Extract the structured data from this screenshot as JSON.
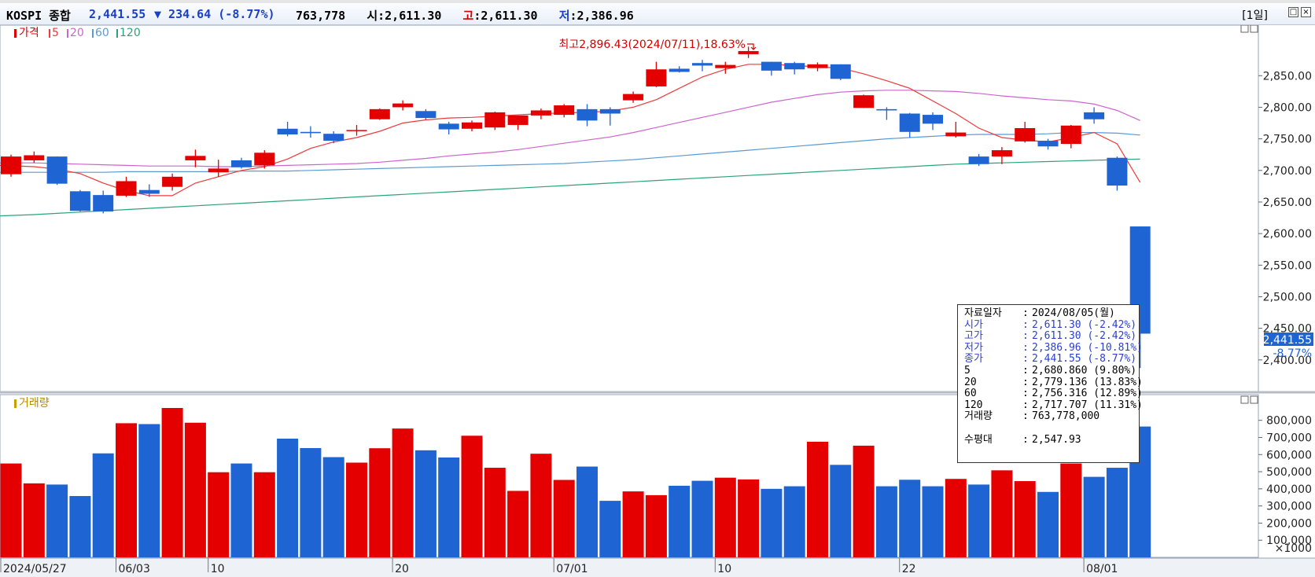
{
  "header": {
    "name": "KOSPI 종합",
    "price": "2,441.55",
    "change": "▼ 234.64 (-8.77%)",
    "volume": "763,778",
    "open_label": "시",
    "open_value": ":2,611.30",
    "high_label": "고",
    "high_value": ":2,611.30",
    "low_label": "저",
    "low_value": ":2,386.96",
    "period": "[1일]"
  },
  "colors": {
    "up": "#e40000",
    "down": "#1e64d2",
    "ma5": "#ee3a3a",
    "ma20": "#cc66cc",
    "ma60": "#5a9bd4",
    "ma120": "#2aa37a"
  },
  "price_legend": {
    "price": "가격",
    "ma5": "5",
    "ma20": "20",
    "ma60": "60",
    "ma120": "120"
  },
  "volume_legend": "거래량",
  "annotation": "최고2,896.43(2024/07/11),18.63%",
  "last_price_tag": {
    "price": "2,441.55",
    "pct": "-8.77%"
  },
  "chart_data": {
    "type": "candlestick",
    "price_axis": {
      "range": [
        2350,
        2930
      ],
      "ticks": [
        2400,
        2450,
        2500,
        2550,
        2600,
        2650,
        2700,
        2750,
        2800,
        2850
      ],
      "tick_labels": [
        "2,400.00",
        "2,450.00",
        "2,500.00",
        "2,550.00",
        "2,600.00",
        "2,650.00",
        "2,700.00",
        "2,750.00",
        "2,800.00",
        "2,850.00"
      ]
    },
    "volume_axis": {
      "range": [
        0,
        950
      ],
      "ticks": [
        100,
        200,
        300,
        400,
        500,
        600,
        700,
        800
      ],
      "tick_labels": [
        "100,000",
        "200,000",
        "300,000",
        "400,000",
        "500,000",
        "600,000",
        "700,000",
        "800,000"
      ],
      "unit_label": "×1000"
    },
    "x_labels": [
      {
        "index": 0,
        "label": "2024/05/27"
      },
      {
        "index": 5,
        "label": "06/03"
      },
      {
        "index": 9,
        "label": "10"
      },
      {
        "index": 17,
        "label": "20"
      },
      {
        "index": 24,
        "label": "07/01"
      },
      {
        "index": 31,
        "label": "10"
      },
      {
        "index": 39,
        "label": "22"
      },
      {
        "index": 47,
        "label": "08/01"
      }
    ],
    "candles": [
      {
        "o": 2694,
        "h": 2725,
        "l": 2690,
        "c": 2722,
        "v": 548
      },
      {
        "o": 2716,
        "h": 2730,
        "l": 2712,
        "c": 2724,
        "v": 432
      },
      {
        "o": 2722,
        "h": 2722,
        "l": 2677,
        "c": 2679,
        "v": 425
      },
      {
        "o": 2667,
        "h": 2669,
        "l": 2635,
        "c": 2636,
        "v": 358
      },
      {
        "o": 2661,
        "h": 2668,
        "l": 2632,
        "c": 2635,
        "v": 607
      },
      {
        "o": 2660,
        "h": 2690,
        "l": 2658,
        "c": 2683,
        "v": 783
      },
      {
        "o": 2669,
        "h": 2678,
        "l": 2658,
        "c": 2663,
        "v": 778
      },
      {
        "o": 2674,
        "h": 2695,
        "l": 2668,
        "c": 2690,
        "v": 872
      },
      {
        "o": 2716,
        "h": 2733,
        "l": 2705,
        "c": 2723,
        "v": 786
      },
      {
        "o": 2697,
        "h": 2717,
        "l": 2690,
        "c": 2703,
        "v": 497
      },
      {
        "o": 2716,
        "h": 2720,
        "l": 2703,
        "c": 2705,
        "v": 548
      },
      {
        "o": 2708,
        "h": 2732,
        "l": 2703,
        "c": 2728,
        "v": 497
      },
      {
        "o": 2766,
        "h": 2777,
        "l": 2754,
        "c": 2757,
        "v": 693
      },
      {
        "o": 2761,
        "h": 2770,
        "l": 2752,
        "c": 2759,
        "v": 638
      },
      {
        "o": 2758,
        "h": 2762,
        "l": 2743,
        "c": 2747,
        "v": 585
      },
      {
        "o": 2763,
        "h": 2772,
        "l": 2755,
        "c": 2764,
        "v": 553
      },
      {
        "o": 2781,
        "h": 2798,
        "l": 2780,
        "c": 2797,
        "v": 637
      },
      {
        "o": 2800,
        "h": 2811,
        "l": 2795,
        "c": 2806,
        "v": 752
      },
      {
        "o": 2794,
        "h": 2797,
        "l": 2780,
        "c": 2783,
        "v": 625
      },
      {
        "o": 2774,
        "h": 2777,
        "l": 2757,
        "c": 2765,
        "v": 583
      },
      {
        "o": 2766,
        "h": 2779,
        "l": 2762,
        "c": 2776,
        "v": 710
      },
      {
        "o": 2768,
        "h": 2793,
        "l": 2764,
        "c": 2792,
        "v": 523
      },
      {
        "o": 2772,
        "h": 2787,
        "l": 2764,
        "c": 2787,
        "v": 388
      },
      {
        "o": 2787,
        "h": 2798,
        "l": 2781,
        "c": 2795,
        "v": 605
      },
      {
        "o": 2788,
        "h": 2805,
        "l": 2784,
        "c": 2803,
        "v": 452
      },
      {
        "o": 2797,
        "h": 2805,
        "l": 2770,
        "c": 2779,
        "v": 530
      },
      {
        "o": 2797,
        "h": 2800,
        "l": 2771,
        "c": 2790,
        "v": 330
      },
      {
        "o": 2811,
        "h": 2825,
        "l": 2807,
        "c": 2821,
        "v": 385
      },
      {
        "o": 2833,
        "h": 2872,
        "l": 2832,
        "c": 2860,
        "v": 363
      },
      {
        "o": 2861,
        "h": 2865,
        "l": 2855,
        "c": 2856,
        "v": 418
      },
      {
        "o": 2870,
        "h": 2875,
        "l": 2857,
        "c": 2866,
        "v": 447
      },
      {
        "o": 2862,
        "h": 2872,
        "l": 2853,
        "c": 2867,
        "v": 465
      },
      {
        "o": 2884,
        "h": 2896,
        "l": 2878,
        "c": 2889,
        "v": 455
      },
      {
        "o": 2872,
        "h": 2872,
        "l": 2850,
        "c": 2858,
        "v": 400
      },
      {
        "o": 2870,
        "h": 2872,
        "l": 2852,
        "c": 2860,
        "v": 415
      },
      {
        "o": 2862,
        "h": 2871,
        "l": 2857,
        "c": 2868,
        "v": 675
      },
      {
        "o": 2868,
        "h": 2868,
        "l": 2843,
        "c": 2845,
        "v": 540
      },
      {
        "o": 2799,
        "h": 2820,
        "l": 2799,
        "c": 2819,
        "v": 652
      },
      {
        "o": 2797,
        "h": 2800,
        "l": 2780,
        "c": 2795,
        "v": 415
      },
      {
        "o": 2790,
        "h": 2791,
        "l": 2752,
        "c": 2761,
        "v": 453
      },
      {
        "o": 2788,
        "h": 2792,
        "l": 2764,
        "c": 2774,
        "v": 415
      },
      {
        "o": 2754,
        "h": 2777,
        "l": 2752,
        "c": 2760,
        "v": 458
      },
      {
        "o": 2722,
        "h": 2726,
        "l": 2707,
        "c": 2710,
        "v": 425
      },
      {
        "o": 2722,
        "h": 2737,
        "l": 2710,
        "c": 2732,
        "v": 508
      },
      {
        "o": 2746,
        "h": 2777,
        "l": 2744,
        "c": 2767,
        "v": 445
      },
      {
        "o": 2747,
        "h": 2750,
        "l": 2733,
        "c": 2738,
        "v": 382
      },
      {
        "o": 2742,
        "h": 2772,
        "l": 2735,
        "c": 2771,
        "v": 548
      },
      {
        "o": 2792,
        "h": 2800,
        "l": 2774,
        "c": 2781,
        "v": 470
      },
      {
        "o": 2720,
        "h": 2722,
        "l": 2668,
        "c": 2676,
        "v": 523
      },
      {
        "o": 2611.3,
        "h": 2611.3,
        "l": 2386.96,
        "c": 2441.55,
        "v": 763.778
      }
    ],
    "moving_averages": {
      "ma5": [
        2708,
        2706,
        2702,
        2695,
        2680,
        2668,
        2660,
        2660,
        2680,
        2690,
        2700,
        2706,
        2718,
        2735,
        2745,
        2752,
        2762,
        2775,
        2780,
        2783,
        2784,
        2786,
        2788,
        2790,
        2791,
        2792,
        2794,
        2800,
        2812,
        2830,
        2848,
        2860,
        2868,
        2868,
        2866,
        2864,
        2862,
        2853,
        2842,
        2830,
        2810,
        2790,
        2767,
        2752,
        2748,
        2745,
        2752,
        2760,
        2742,
        2681
      ],
      "ma20": [
        2712,
        2712,
        2711,
        2710,
        2709,
        2708,
        2707,
        2707,
        2707,
        2706,
        2706,
        2707,
        2708,
        2709,
        2710,
        2711,
        2713,
        2716,
        2719,
        2723,
        2726,
        2729,
        2733,
        2738,
        2743,
        2748,
        2753,
        2760,
        2768,
        2776,
        2784,
        2792,
        2800,
        2808,
        2814,
        2820,
        2824,
        2826,
        2827,
        2827,
        2826,
        2825,
        2822,
        2818,
        2815,
        2812,
        2810,
        2805,
        2795,
        2779
      ],
      "ma60": [
        2697,
        2697,
        2697,
        2697,
        2697,
        2698,
        2698,
        2698,
        2698,
        2698,
        2699,
        2699,
        2699,
        2700,
        2701,
        2702,
        2703,
        2704,
        2705,
        2706,
        2707,
        2708,
        2709,
        2710,
        2711,
        2713,
        2715,
        2717,
        2720,
        2723,
        2726,
        2729,
        2732,
        2735,
        2738,
        2741,
        2744,
        2747,
        2750,
        2752,
        2754,
        2756,
        2757,
        2757,
        2757,
        2758,
        2760,
        2760,
        2759,
        2756
      ],
      "ma120": [
        2628,
        2630,
        2632,
        2634,
        2636,
        2638,
        2640,
        2642,
        2644,
        2646,
        2648,
        2650,
        2652,
        2654,
        2656,
        2658,
        2660,
        2662,
        2664,
        2666,
        2668,
        2670,
        2672,
        2674,
        2676,
        2678,
        2680,
        2682,
        2684,
        2686,
        2688,
        2690,
        2692,
        2694,
        2696,
        2698,
        2700,
        2702,
        2704,
        2706,
        2708,
        2710,
        2711,
        2712,
        2713,
        2714,
        2715,
        2716,
        2717,
        2718
      ]
    }
  },
  "tooltip": {
    "rows": [
      {
        "k": "자료일자",
        "v": "2024/08/05(월)",
        "blue": false
      },
      {
        "k": "시가",
        "v": "2,611.30 (-2.42%)",
        "blue": true
      },
      {
        "k": "고가",
        "v": "2,611.30 (-2.42%)",
        "blue": true
      },
      {
        "k": "저가",
        "v": "2,386.96 (-10.81%)",
        "blue": true
      },
      {
        "k": "종가",
        "v": "2,441.55 (-8.77%)",
        "blue": true
      },
      {
        "k": "5",
        "v": "2,680.860 (9.80%)",
        "blue": false
      },
      {
        "k": "20",
        "v": "2,779.136 (13.83%)",
        "blue": false
      },
      {
        "k": "60",
        "v": "2,756.316 (12.89%)",
        "blue": false
      },
      {
        "k": "120",
        "v": "2,717.707 (11.31%)",
        "blue": false
      },
      {
        "k": "거래량",
        "v": "763,778,000",
        "blue": false
      },
      {
        "k": "",
        "v": "",
        "blue": false
      },
      {
        "k": "수평대",
        "v": "2,547.93",
        "blue": false
      }
    ]
  }
}
